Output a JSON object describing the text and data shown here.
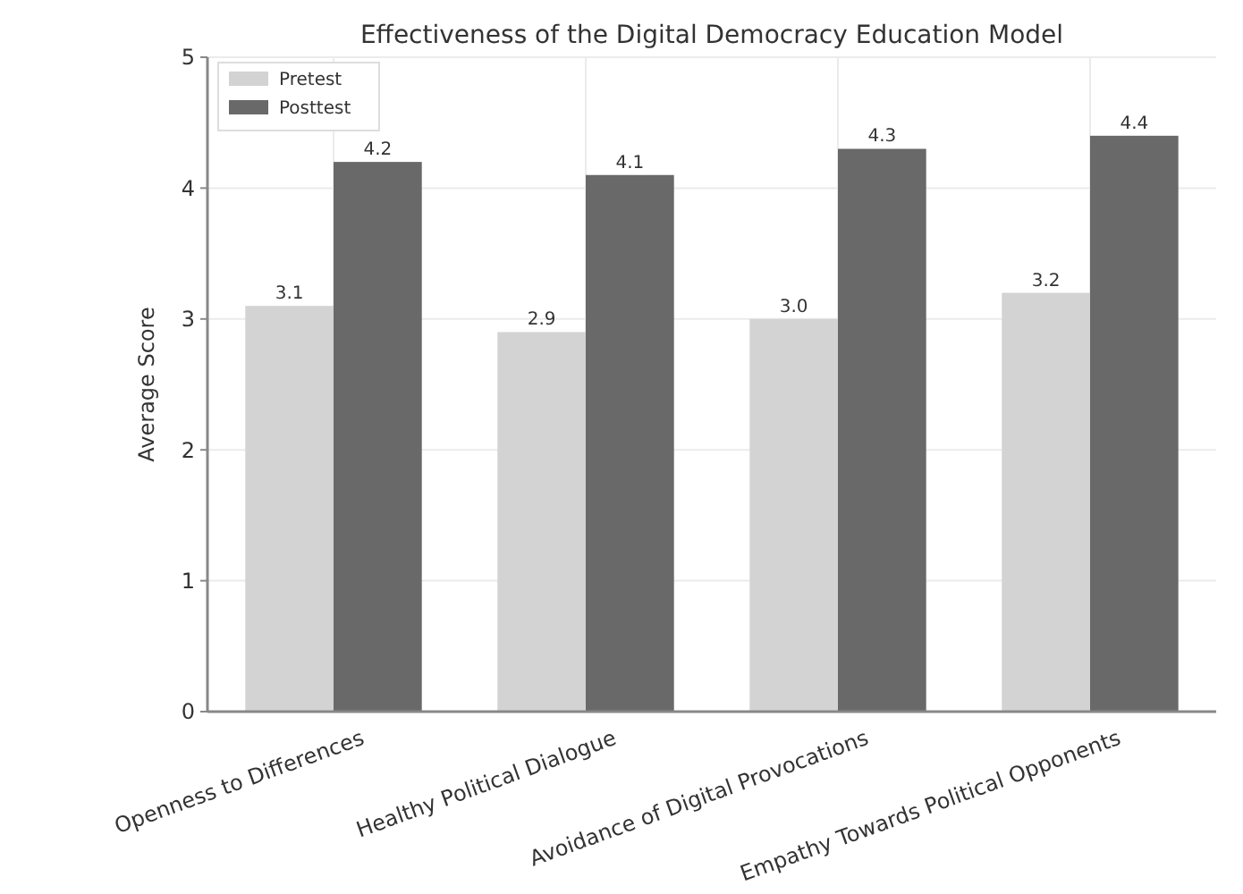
{
  "chart_data": {
    "type": "bar",
    "title": "Effectiveness of the Digital Democracy Education Model",
    "ylabel": "Average Score",
    "categories": [
      "Openness to Differences",
      "Healthy Political Dialogue",
      "Avoidance of Digital Provocations",
      "Empathy Towards Political Opponents"
    ],
    "series": [
      {
        "name": "Pretest",
        "color": "#d3d3d3",
        "values": [
          3.1,
          2.9,
          3.0,
          3.2
        ],
        "value_labels": [
          "3.1",
          "2.9",
          "3.0",
          "3.2"
        ]
      },
      {
        "name": "Posttest",
        "color": "#696969",
        "values": [
          4.2,
          4.1,
          4.3,
          4.4
        ],
        "value_labels": [
          "4.2",
          "4.1",
          "4.3",
          "4.4"
        ]
      }
    ],
    "ylim": [
      0,
      5
    ],
    "yticks": [
      0,
      1,
      2,
      3,
      4,
      5
    ],
    "grid": true,
    "legend": "top left"
  }
}
